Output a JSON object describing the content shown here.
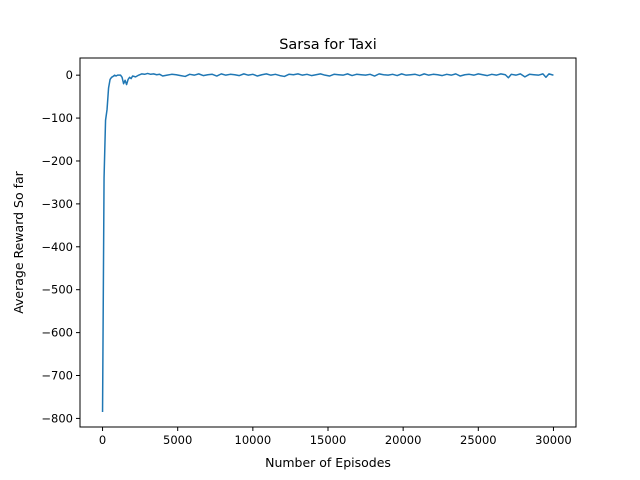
{
  "chart_data": {
    "type": "line",
    "title": "Sarsa for Taxi",
    "xlabel": "Number of Episodes",
    "ylabel": "Average Reward So far",
    "xlim": [
      -1500,
      31500
    ],
    "ylim": [
      -820,
      40
    ],
    "xticks": [
      0,
      5000,
      10000,
      15000,
      20000,
      25000,
      30000
    ],
    "xtick_labels": [
      "0",
      "5000",
      "10000",
      "15000",
      "20000",
      "25000",
      "30000"
    ],
    "yticks": [
      0,
      -100,
      -200,
      -300,
      -400,
      -500,
      -600,
      -700,
      -800
    ],
    "ytick_labels": [
      "0",
      "−100",
      "−200",
      "−300",
      "−400",
      "−500",
      "−600",
      "−700",
      "−800"
    ],
    "grid": false,
    "line_color": "#1f77b4",
    "series": [
      {
        "x": [
          0,
          100,
          200,
          300,
          400,
          500,
          600,
          700,
          800,
          900,
          1000,
          1100,
          1200,
          1300,
          1400,
          1500,
          1600,
          1700,
          1800,
          1900,
          2000,
          2200,
          2400,
          2600,
          2800,
          3000,
          3200,
          3400,
          3600,
          3800,
          4000,
          4300,
          4600,
          4900,
          5200,
          5500,
          5800,
          6100,
          6400,
          6700,
          7000,
          7300,
          7600,
          7900,
          8200,
          8500,
          8800,
          9100,
          9400,
          9700,
          10000,
          10300,
          10600,
          10900,
          11200,
          11500,
          11800,
          12100,
          12400,
          12700,
          13000,
          13300,
          13600,
          13900,
          14200,
          14500,
          14800,
          15100,
          15400,
          15700,
          16000,
          16300,
          16600,
          16900,
          17200,
          17500,
          17800,
          18100,
          18400,
          18700,
          19000,
          19300,
          19600,
          19900,
          20200,
          20500,
          20800,
          21100,
          21400,
          21700,
          22000,
          22300,
          22600,
          22900,
          23200,
          23500,
          23800,
          24100,
          24400,
          24700,
          25000,
          25300,
          25600,
          25900,
          26200,
          26500,
          26800,
          27000,
          27200,
          27500,
          27800,
          28100,
          28400,
          28700,
          29000,
          29300,
          29500,
          29700,
          29900,
          30000
        ],
        "y": [
          -785,
          -240,
          -105,
          -80,
          -30,
          -10,
          -5,
          -3,
          0,
          -2,
          0,
          0,
          0,
          -5,
          -20,
          -12,
          -22,
          -10,
          -5,
          -8,
          -2,
          -4,
          0,
          3,
          2,
          4,
          2,
          3,
          1,
          2,
          -2,
          0,
          2,
          1,
          -1,
          -3,
          2,
          0,
          3,
          -1,
          1,
          2,
          -2,
          3,
          0,
          2,
          1,
          -1,
          3,
          0,
          2,
          -2,
          1,
          3,
          0,
          2,
          -1,
          -3,
          2,
          1,
          3,
          0,
          2,
          -1,
          1,
          3,
          0,
          -2,
          2,
          1,
          0,
          3,
          -1,
          2,
          1,
          0,
          2,
          -2,
          3,
          1,
          0,
          2,
          -1,
          3,
          0,
          1,
          2,
          -1,
          3,
          0,
          2,
          1,
          -1,
          2,
          0,
          3,
          -2,
          1,
          2,
          0,
          3,
          1,
          -1,
          2,
          0,
          3,
          1,
          -6,
          2,
          0,
          3,
          -4,
          2,
          1,
          0,
          3,
          -5,
          3,
          1,
          0
        ]
      }
    ]
  }
}
